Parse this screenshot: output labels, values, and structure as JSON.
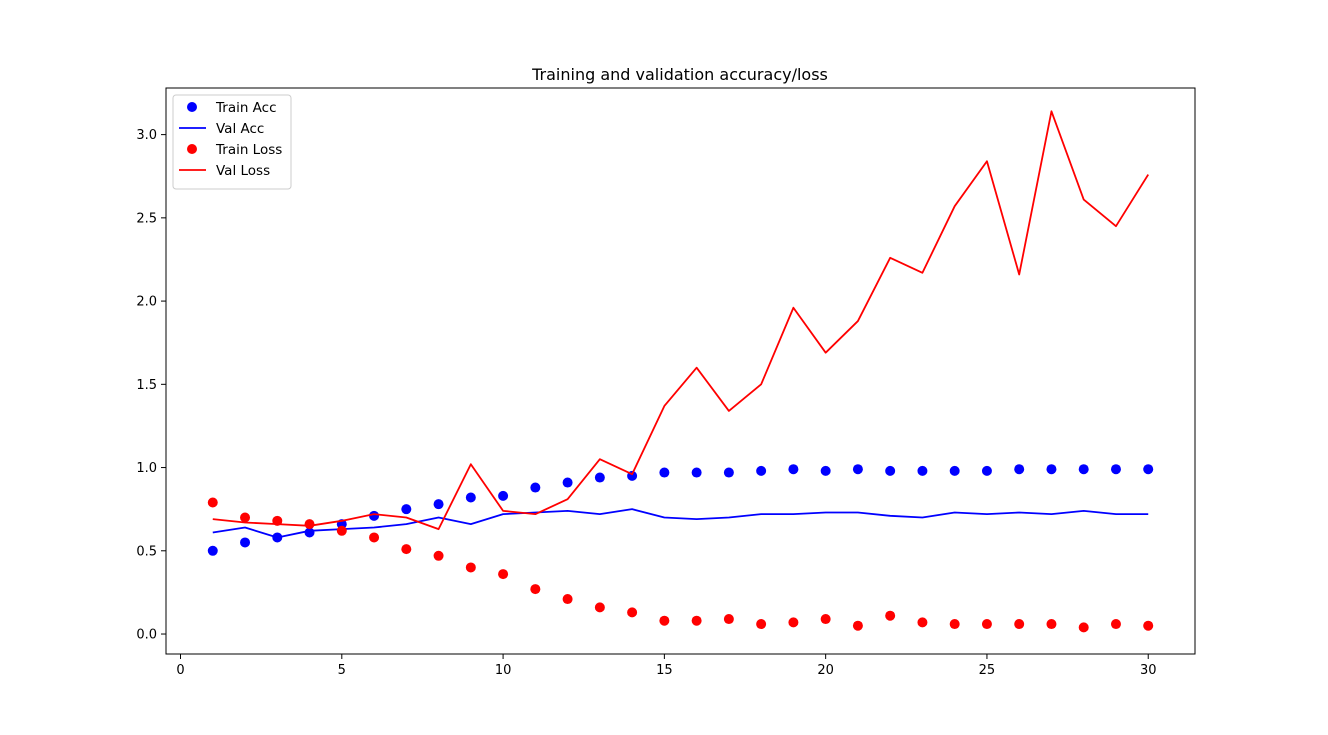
{
  "chart_data": {
    "type": "line",
    "title": "Training and validation accuracy/loss",
    "xlabel": "",
    "ylabel": "",
    "xlim": [
      -0.45,
      31.45
    ],
    "ylim": [
      -0.12,
      3.28
    ],
    "x_ticks": [
      0,
      5,
      10,
      15,
      20,
      25,
      30
    ],
    "y_ticks": [
      0.0,
      0.5,
      1.0,
      1.5,
      2.0,
      2.5,
      3.0
    ],
    "grid": false,
    "legend_position": "top-left",
    "x": [
      1,
      2,
      3,
      4,
      5,
      6,
      7,
      8,
      9,
      10,
      11,
      12,
      13,
      14,
      15,
      16,
      17,
      18,
      19,
      20,
      21,
      22,
      23,
      24,
      25,
      26,
      27,
      28,
      29,
      30
    ],
    "series": [
      {
        "name": "Train Acc",
        "style": "dots",
        "color": "#0000ff",
        "values": [
          0.5,
          0.55,
          0.58,
          0.61,
          0.66,
          0.71,
          0.75,
          0.78,
          0.82,
          0.83,
          0.88,
          0.91,
          0.94,
          0.95,
          0.97,
          0.97,
          0.97,
          0.98,
          0.99,
          0.98,
          0.99,
          0.98,
          0.98,
          0.98,
          0.98,
          0.99,
          0.99,
          0.99,
          0.99,
          0.99
        ]
      },
      {
        "name": "Val Acc",
        "style": "line",
        "color": "#0000ff",
        "values": [
          0.61,
          0.64,
          0.58,
          0.62,
          0.63,
          0.64,
          0.66,
          0.7,
          0.66,
          0.72,
          0.73,
          0.74,
          0.72,
          0.75,
          0.7,
          0.69,
          0.7,
          0.72,
          0.72,
          0.73,
          0.73,
          0.71,
          0.7,
          0.73,
          0.72,
          0.73,
          0.72,
          0.74,
          0.72,
          0.72
        ]
      },
      {
        "name": "Train Loss",
        "style": "dots",
        "color": "#ff0000",
        "values": [
          0.79,
          0.7,
          0.68,
          0.66,
          0.62,
          0.58,
          0.51,
          0.47,
          0.4,
          0.36,
          0.27,
          0.21,
          0.16,
          0.13,
          0.08,
          0.08,
          0.09,
          0.06,
          0.07,
          0.09,
          0.05,
          0.11,
          0.07,
          0.06,
          0.06,
          0.06,
          0.06,
          0.04,
          0.06,
          0.05
        ]
      },
      {
        "name": "Val Loss",
        "style": "line",
        "color": "#ff0000",
        "values": [
          0.69,
          0.67,
          0.66,
          0.65,
          0.68,
          0.72,
          0.7,
          0.63,
          1.02,
          0.74,
          0.72,
          0.81,
          1.05,
          0.96,
          1.37,
          1.6,
          1.34,
          1.5,
          1.96,
          1.69,
          1.88,
          2.26,
          2.17,
          2.57,
          2.84,
          2.16,
          3.14,
          2.61,
          2.45,
          2.76
        ]
      }
    ]
  }
}
